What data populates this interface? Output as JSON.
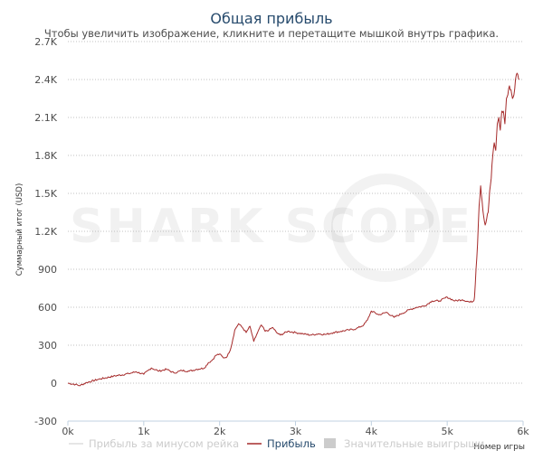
{
  "chart_data": {
    "type": "line",
    "title": "Общая прибыль",
    "subtitle": "Чтобы увеличить изображение, кликните и перетащите мышкой внутрь графика.",
    "xlabel": "Номер игры",
    "ylabel": "Суммарный итог (USD)",
    "xlim": [
      0,
      6000
    ],
    "ylim": [
      -300,
      2700
    ],
    "x_ticks": [
      0,
      1000,
      2000,
      3000,
      4000,
      5000,
      6000
    ],
    "x_tick_labels": [
      "0k",
      "1k",
      "2k",
      "3k",
      "4k",
      "5k",
      "6k"
    ],
    "y_ticks": [
      -300,
      0,
      300,
      600,
      900,
      1200,
      1500,
      1800,
      2100,
      2400,
      2700
    ],
    "y_tick_labels": [
      "-300",
      "0",
      "300",
      "600",
      "900",
      "1.2K",
      "1.5K",
      "1.8K",
      "2.1K",
      "2.4K",
      "2.7K"
    ],
    "grid": true,
    "legend_position": "bottom",
    "watermark": "SHARK SCOPE",
    "series": [
      {
        "name": "Прибыль",
        "color": "#a52a2a",
        "x": [
          0,
          100,
          150,
          250,
          400,
          600,
          800,
          900,
          1000,
          1100,
          1200,
          1300,
          1400,
          1500,
          1600,
          1700,
          1800,
          1850,
          1900,
          1950,
          2000,
          2050,
          2100,
          2150,
          2200,
          2250,
          2300,
          2350,
          2400,
          2450,
          2500,
          2550,
          2600,
          2650,
          2700,
          2750,
          2800,
          2900,
          3000,
          3100,
          3200,
          3300,
          3400,
          3500,
          3600,
          3700,
          3800,
          3900,
          3950,
          4000,
          4100,
          4200,
          4300,
          4400,
          4500,
          4600,
          4700,
          4800,
          4900,
          5000,
          5100,
          5200,
          5300,
          5350,
          5360,
          5380,
          5400,
          5420,
          5440,
          5460,
          5480,
          5500,
          5520,
          5540,
          5560,
          5580,
          5600,
          5620,
          5640,
          5660,
          5680,
          5700,
          5720,
          5740,
          5760,
          5780,
          5800,
          5820,
          5840,
          5860,
          5880,
          5900,
          5920,
          5950
        ],
        "y": [
          0,
          -10,
          -20,
          5,
          30,
          55,
          75,
          90,
          70,
          120,
          95,
          110,
          80,
          100,
          95,
          110,
          120,
          160,
          180,
          220,
          230,
          200,
          210,
          280,
          420,
          470,
          440,
          400,
          450,
          330,
          400,
          460,
          410,
          420,
          440,
          400,
          380,
          410,
          400,
          390,
          380,
          390,
          385,
          400,
          410,
          420,
          430,
          460,
          500,
          570,
          540,
          560,
          520,
          550,
          580,
          600,
          610,
          650,
          650,
          680,
          650,
          660,
          640,
          650,
          680,
          900,
          1100,
          1400,
          1560,
          1440,
          1320,
          1250,
          1300,
          1350,
          1520,
          1620,
          1800,
          1900,
          1840,
          2050,
          2100,
          2000,
          2150,
          2150,
          2050,
          2250,
          2280,
          2350,
          2320,
          2250,
          2280,
          2400,
          2450,
          2400
        ]
      }
    ],
    "legend": [
      {
        "label": "Прибыль за минусом рейка",
        "color": "#dddddd",
        "shape": "line"
      },
      {
        "label": "Прибыль",
        "color": "#a52a2a",
        "shape": "line"
      },
      {
        "label": "Значительные выигрыши",
        "color": "#cccccc",
        "shape": "square"
      }
    ]
  }
}
